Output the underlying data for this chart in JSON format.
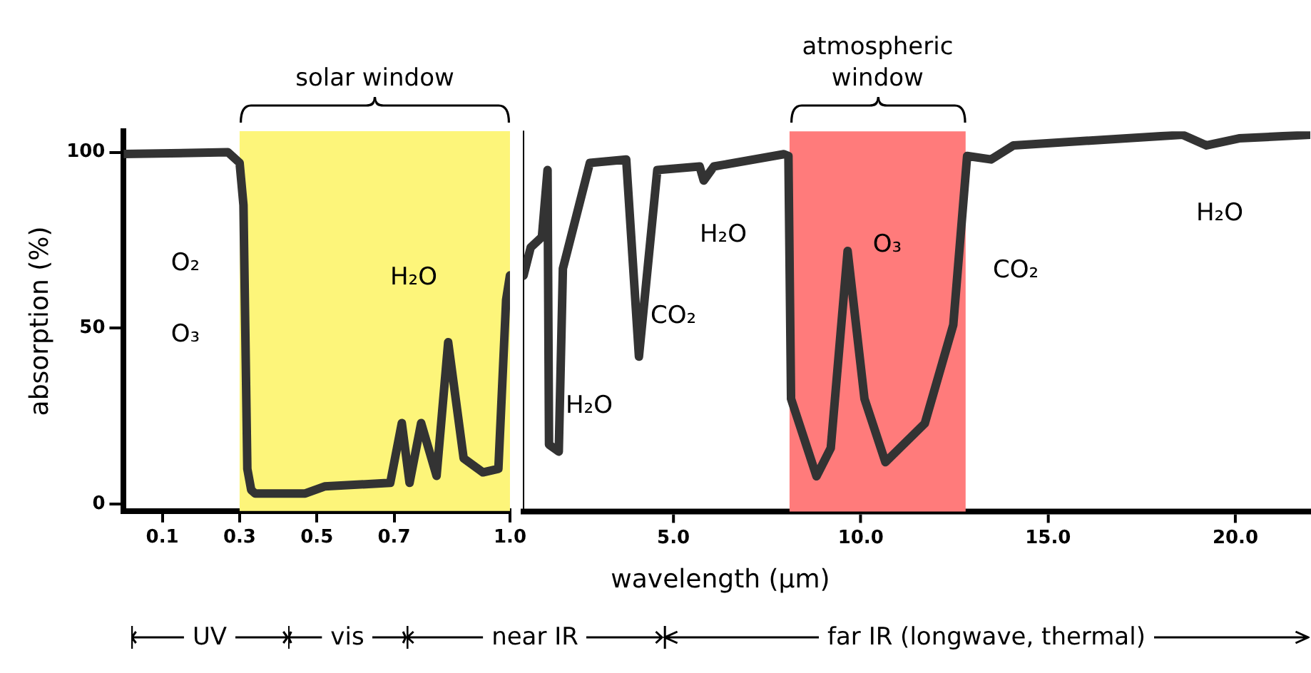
{
  "chart_data": [
    {
      "type": "line",
      "ylabel": "absorption (%)",
      "x": [
        0,
        0.27,
        0.3,
        0.31,
        0.32,
        0.33,
        0.34,
        0.47,
        0.52,
        0.69,
        0.72,
        0.74,
        0.77,
        0.81,
        0.84,
        0.88,
        0.93,
        0.97,
        0.99,
        1.0
      ],
      "series": [
        {
          "color": "#333333",
          "values": [
            99.5,
            100,
            97,
            85,
            10,
            4,
            3,
            3,
            5,
            6,
            23,
            6,
            23,
            8,
            46,
            13,
            9,
            10,
            58,
            65
          ]
        }
      ],
      "xlim": [
        0,
        1
      ],
      "xticks": [
        0.1,
        0.3,
        0.5,
        0.7,
        {
          "value": 1,
          "label": "1.0"
        }
      ],
      "ylim": [
        -2,
        106
      ],
      "yticks": [
        0,
        50,
        100
      ],
      "bands": [
        {
          "axis": "x",
          "from": 0.3,
          "to": 1.0,
          "label": "solar window",
          "color": "#fdf57a"
        }
      ],
      "annotations": [
        "O₂",
        "O₃",
        "H₂O"
      ],
      "grid": false,
      "legend": false,
      "marker": "none",
      "line_style": "solid"
    },
    {
      "type": "line",
      "xlabel": "wavelength (μm)",
      "x": [
        1.0,
        1.19,
        1.49,
        1.64,
        1.68,
        1.94,
        2.05,
        2.77,
        3.74,
        4.08,
        4.57,
        5.7,
        5.81,
        6.08,
        7.95,
        8.07,
        8.14,
        8.82,
        9.2,
        9.65,
        10.1,
        10.66,
        11.71,
        12.47,
        12.84,
        13.48,
        14.08,
        18.59,
        19.23,
        20.1,
        22
      ],
      "series": [
        {
          "color": "#333333",
          "values": [
            65,
            73,
            76,
            95,
            17,
            15,
            67,
            97,
            98,
            42,
            95,
            96,
            92,
            96,
            99.5,
            99,
            30,
            8,
            16,
            72,
            30,
            12,
            23,
            51,
            99,
            98,
            102,
            105,
            102,
            104,
            105
          ]
        }
      ],
      "xlim": [
        1,
        22
      ],
      "xticks": [
        {
          "value": 5,
          "label": "5.0"
        },
        {
          "value": 10,
          "label": "10.0"
        },
        {
          "value": 15,
          "label": "15.0"
        },
        {
          "value": 20,
          "label": "20.0"
        }
      ],
      "ylim": [
        -2,
        106
      ],
      "tick_labels": "x",
      "bands": [
        {
          "axis": "x",
          "from": 8.1,
          "to": 12.8,
          "label": "atmospheric window",
          "color": "#ff7b7b"
        }
      ],
      "annotations": [
        "H₂O",
        "CO₂",
        "H₂O",
        "O₃",
        "CO₂",
        "H₂O",
        "UV",
        "vis",
        "near IR",
        "far IR (longwave, thermal)"
      ],
      "grid": false,
      "legend": false,
      "marker": "none",
      "line_style": "solid"
    }
  ]
}
